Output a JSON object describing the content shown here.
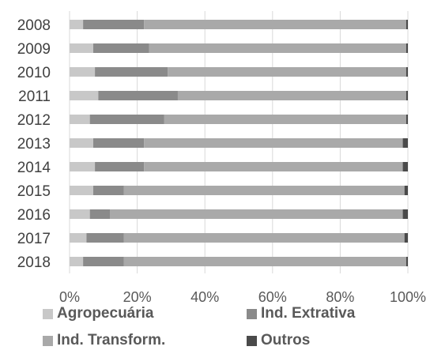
{
  "chart_data": {
    "type": "bar",
    "orientation": "horizontal",
    "stacked": "percent",
    "title": "",
    "xlabel": "",
    "ylabel": "",
    "categories": [
      "2008",
      "2009",
      "2010",
      "2011",
      "2012",
      "2013",
      "2014",
      "2015",
      "2016",
      "2017",
      "2018"
    ],
    "series": [
      {
        "name": "Agropecuária",
        "color": "#c8c8c8",
        "values": [
          4,
          7,
          7.5,
          8.5,
          6,
          7,
          7.5,
          7,
          6,
          5,
          4
        ]
      },
      {
        "name": "Ind. Extrativa",
        "color": "#8a8a8a",
        "values": [
          18,
          16.5,
          21.5,
          23.5,
          22,
          15,
          14.5,
          9,
          6,
          11,
          12
        ]
      },
      {
        "name": "Ind. Transform.",
        "color": "#a9a9a9",
        "values": [
          77.5,
          76,
          70.5,
          67.5,
          71.5,
          76.5,
          76.5,
          83,
          86.5,
          83,
          83.5
        ]
      },
      {
        "name": "Outros",
        "color": "#4a4a4a",
        "values": [
          0.5,
          0.5,
          0.5,
          0.5,
          0.5,
          1.5,
          1.5,
          1,
          1.5,
          1,
          0.5
        ]
      }
    ],
    "xlim": [
      0,
      100
    ],
    "x_ticks": [
      "0%",
      "20%",
      "40%",
      "60%",
      "80%",
      "100%"
    ],
    "grid": true,
    "legend_position": "bottom"
  }
}
